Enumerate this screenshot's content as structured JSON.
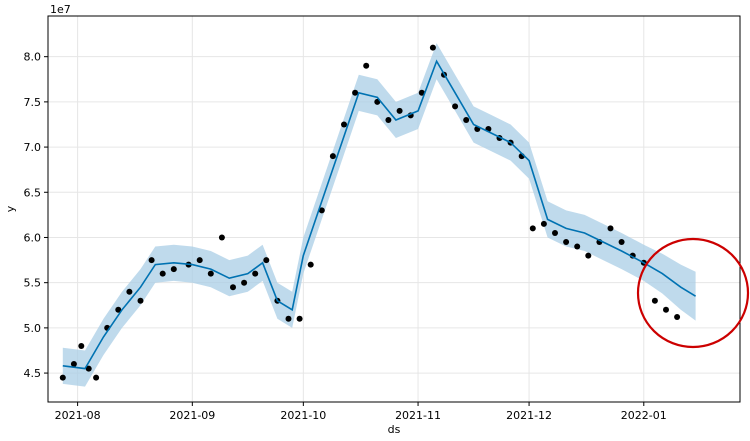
{
  "chart_data": {
    "type": "line",
    "xlabel": "ds",
    "ylabel": "y",
    "y_scale_note": "1e7",
    "grid": true,
    "x_ticks": [
      "2021-08",
      "2021-09",
      "2021-10",
      "2021-11",
      "2021-12",
      "2022-01"
    ],
    "y_ticks": [
      "4.5",
      "5.0",
      "5.5",
      "6.0",
      "6.5",
      "7.0",
      "7.5",
      "8.0"
    ],
    "xlim": [
      "2021-07-24",
      "2022-01-27"
    ],
    "ylim": [
      4.18,
      8.45
    ],
    "colors": {
      "forecast": "#0072B2",
      "band": "#a9cde6",
      "observed": "#000000",
      "annotation": "#cc0000"
    },
    "forecast": {
      "x": [
        "2021-07-28",
        "2021-08-03",
        "2021-08-08",
        "2021-08-13",
        "2021-08-18",
        "2021-08-22",
        "2021-08-27",
        "2021-09-01",
        "2021-09-06",
        "2021-09-11",
        "2021-09-16",
        "2021-09-20",
        "2021-09-24",
        "2021-09-28",
        "2021-10-01",
        "2021-10-06",
        "2021-10-11",
        "2021-10-16",
        "2021-10-21",
        "2021-10-26",
        "2021-11-01",
        "2021-11-06",
        "2021-11-11",
        "2021-11-16",
        "2021-11-21",
        "2021-11-26",
        "2021-12-01",
        "2021-12-06",
        "2021-12-11",
        "2021-12-16",
        "2021-12-21",
        "2021-12-26",
        "2022-01-01",
        "2022-01-06",
        "2022-01-11",
        "2022-01-15"
      ],
      "y": [
        4.58,
        4.55,
        4.9,
        5.2,
        5.45,
        5.7,
        5.72,
        5.7,
        5.65,
        5.55,
        5.6,
        5.72,
        5.3,
        5.2,
        5.8,
        6.4,
        7.0,
        7.6,
        7.55,
        7.3,
        7.4,
        7.95,
        7.6,
        7.25,
        7.15,
        7.05,
        6.85,
        6.2,
        6.1,
        6.05,
        5.95,
        5.85,
        5.72,
        5.6,
        5.45,
        5.35
      ],
      "upper": [
        4.78,
        4.75,
        5.1,
        5.4,
        5.65,
        5.9,
        5.92,
        5.9,
        5.85,
        5.75,
        5.8,
        5.92,
        5.5,
        5.4,
        6.0,
        6.6,
        7.2,
        7.8,
        7.75,
        7.5,
        7.6,
        8.15,
        7.8,
        7.45,
        7.35,
        7.25,
        7.05,
        6.4,
        6.3,
        6.25,
        6.15,
        6.05,
        5.92,
        5.82,
        5.7,
        5.62
      ],
      "lower": [
        4.38,
        4.35,
        4.7,
        5.0,
        5.25,
        5.5,
        5.52,
        5.5,
        5.45,
        5.35,
        5.4,
        5.52,
        5.1,
        5.0,
        5.6,
        6.2,
        6.8,
        7.4,
        7.35,
        7.1,
        7.2,
        7.75,
        7.4,
        7.05,
        6.95,
        6.85,
        6.65,
        6.0,
        5.9,
        5.85,
        5.75,
        5.65,
        5.52,
        5.38,
        5.2,
        5.08
      ]
    },
    "observed": {
      "x": [
        "2021-07-28",
        "2021-07-31",
        "2021-08-02",
        "2021-08-04",
        "2021-08-06",
        "2021-08-09",
        "2021-08-12",
        "2021-08-15",
        "2021-08-18",
        "2021-08-21",
        "2021-08-24",
        "2021-08-27",
        "2021-08-31",
        "2021-09-03",
        "2021-09-06",
        "2021-09-09",
        "2021-09-12",
        "2021-09-15",
        "2021-09-18",
        "2021-09-21",
        "2021-09-24",
        "2021-09-27",
        "2021-09-30",
        "2021-10-03",
        "2021-10-06",
        "2021-10-09",
        "2021-10-12",
        "2021-10-15",
        "2021-10-18",
        "2021-10-21",
        "2021-10-24",
        "2021-10-27",
        "2021-10-30",
        "2021-11-02",
        "2021-11-05",
        "2021-11-08",
        "2021-11-11",
        "2021-11-14",
        "2021-11-17",
        "2021-11-20",
        "2021-11-23",
        "2021-11-26",
        "2021-11-29",
        "2021-12-02",
        "2021-12-05",
        "2021-12-08",
        "2021-12-11",
        "2021-12-14",
        "2021-12-17",
        "2021-12-20",
        "2021-12-23",
        "2021-12-26",
        "2021-12-29",
        "2022-01-01",
        "2022-01-04",
        "2022-01-07",
        "2022-01-10"
      ],
      "y": [
        4.45,
        4.6,
        4.8,
        4.55,
        4.45,
        5.0,
        5.2,
        5.4,
        5.3,
        5.75,
        5.6,
        5.65,
        5.7,
        5.75,
        5.6,
        6.0,
        5.45,
        5.5,
        5.6,
        5.75,
        5.3,
        5.1,
        5.1,
        5.7,
        6.3,
        6.9,
        7.25,
        7.6,
        7.9,
        7.5,
        7.3,
        7.4,
        7.35,
        7.6,
        8.1,
        7.8,
        7.45,
        7.3,
        7.2,
        7.2,
        7.1,
        7.05,
        6.9,
        6.1,
        6.15,
        6.05,
        5.95,
        5.9,
        5.8,
        5.95,
        6.1,
        5.95,
        5.8,
        5.72,
        5.3,
        5.2,
        5.12
      ]
    }
  }
}
